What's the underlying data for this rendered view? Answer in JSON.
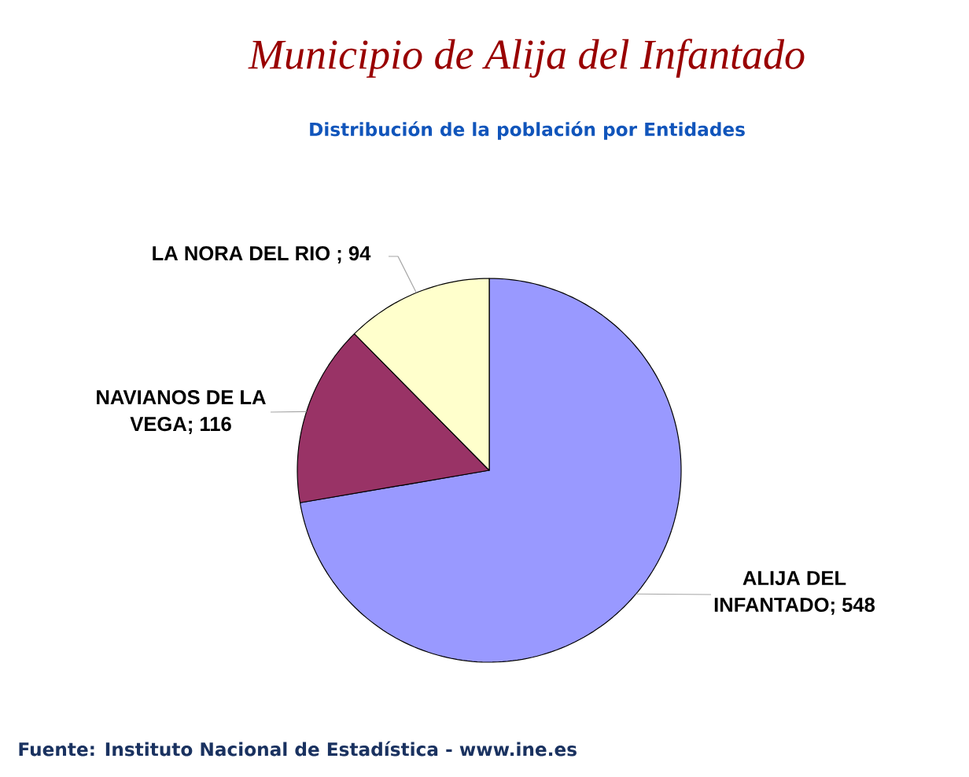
{
  "chart_data": {
    "type": "pie",
    "title": "Municipio de Alija del Infantado",
    "subtitle": "Distribución de la población por Entidades",
    "categories": [
      "ALIJA DEL INFANTADO; 548",
      "NAVIANOS DE LA VEGA; 116",
      "LA NORA DEL RIO ; 94"
    ],
    "values": [
      548,
      116,
      94
    ],
    "colors": [
      "#9999ff",
      "#993366",
      "#ffffcc"
    ],
    "annotations": [
      "Fuente: Instituto Nacional de Estadística - www.ine.es"
    ]
  }
}
